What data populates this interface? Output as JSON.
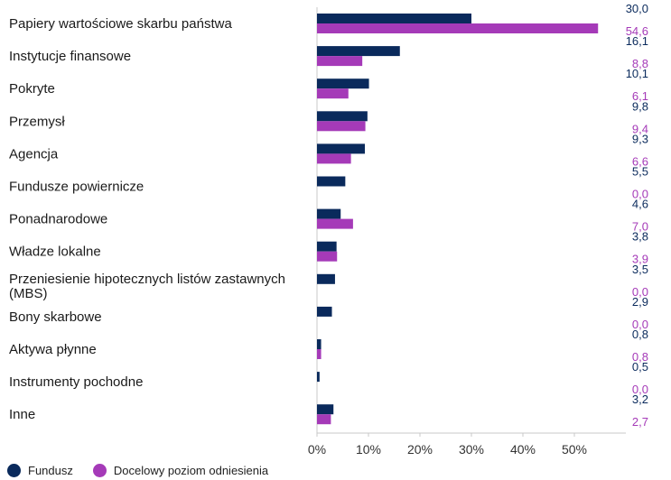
{
  "chart_data": {
    "type": "bar",
    "orientation": "horizontal",
    "categories": [
      "Papiery wartościowe skarbu państwa",
      "Instytucje finansowe",
      "Pokryte",
      "Przemysł",
      "Agencja",
      "Fundusze powiernicze",
      "Ponadnarodowe",
      "Władze lokalne",
      "Przeniesienie hipotecznych listów zastawnych (MBS)",
      "Bony skarbowe",
      "Aktywa płynne",
      "Instrumenty pochodne",
      "Inne"
    ],
    "series": [
      {
        "name": "Fundusz",
        "color": "#0a2a5c",
        "values": [
          30.0,
          16.1,
          10.1,
          9.8,
          9.3,
          5.5,
          4.6,
          3.8,
          3.5,
          2.9,
          0.8,
          0.5,
          3.2
        ],
        "labels": [
          "30,0",
          "16,1",
          "10,1",
          "9,8",
          "9,3",
          "5,5",
          "4,6",
          "3,8",
          "3,5",
          "2,9",
          "0,8",
          "0,5",
          "3,2"
        ]
      },
      {
        "name": "Docelowy poziom odniesienia",
        "color": "#a53ab8",
        "values": [
          54.6,
          8.8,
          6.1,
          9.4,
          6.6,
          0.0,
          7.0,
          3.9,
          0.0,
          0.0,
          0.8,
          0.0,
          2.7
        ],
        "labels": [
          "54,6",
          "8,8",
          "6,1",
          "9,4",
          "6,6",
          "0,0",
          "7,0",
          "3,9",
          "0,0",
          "0,0",
          "0,8",
          "0,0",
          "2,7"
        ]
      }
    ],
    "xticks": [
      0,
      10,
      20,
      30,
      40,
      50
    ],
    "xtick_labels": [
      "0%",
      "10%",
      "20%",
      "30%",
      "40%",
      "50%"
    ],
    "xlim": [
      0,
      60
    ],
    "grid": false,
    "legend_position": "bottom-left"
  }
}
